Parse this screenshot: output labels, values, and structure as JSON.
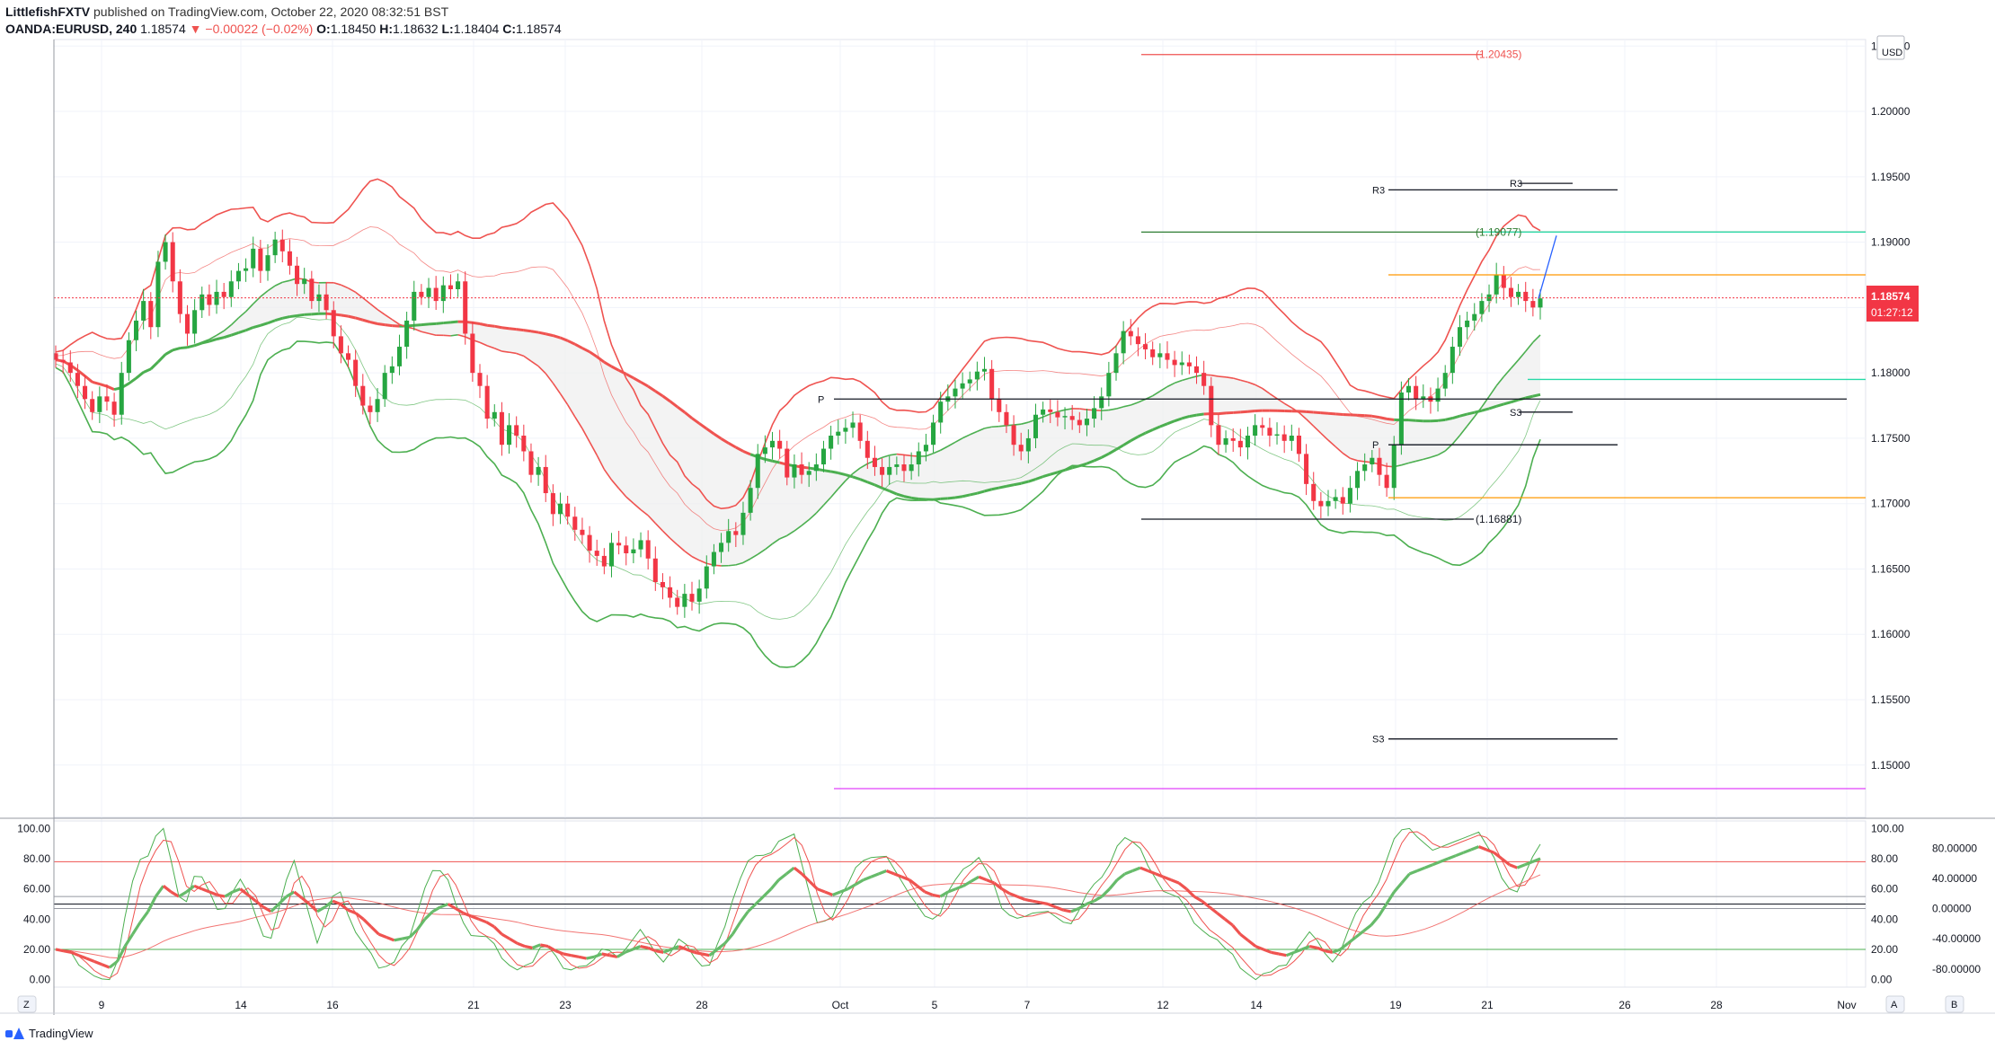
{
  "header": {
    "publisher": "LittlefishFXTV",
    "published_text": "published on TradingView.com, October 22, 2020 08:32:51 BST",
    "symbol": "OANDA:EURUSD, 240",
    "last": "1.18574",
    "change": "▼ −0.00022 (−0.02%)",
    "o_label": "O:",
    "o": "1.18450",
    "h_label": "H:",
    "h": "1.18632",
    "l_label": "L:",
    "l": "1.18404",
    "c_label": "C:",
    "c": "1.18574"
  },
  "price_badge": {
    "price": "1.18574",
    "countdown": "01:27:12"
  },
  "currency": "USD",
  "footer": {
    "brand": "TradingView"
  },
  "scale_buttons": {
    "z": "Z",
    "a": "A",
    "b": "B"
  },
  "colors": {
    "bull": "#26a641",
    "bear": "#f23645",
    "band_red": "#ef5350",
    "band_green": "#4caf50",
    "pivot": "#131722",
    "accent_blue": "#2962ff",
    "orange": "#ff9800",
    "magenta": "#e040fb",
    "teal": "#26d9a6"
  },
  "chart_data": [
    {
      "type": "candlestick",
      "symbol": "OANDA:EURUSD",
      "interval": "240",
      "ylim": [
        1.146,
        1.2055
      ],
      "y_ticks": [
        1.205,
        1.2,
        1.195,
        1.19,
        1.185,
        1.18,
        1.175,
        1.17,
        1.165,
        1.16,
        1.155,
        1.15
      ],
      "y_tick_labels": [
        "1.20500",
        "1.20000",
        "1.19500",
        "1.19000",
        "1.18500",
        "1.18000",
        "1.17500",
        "1.17000",
        "1.16500",
        "1.16000",
        "1.15500",
        "1.15000"
      ],
      "x_tick_labels": [
        "9",
        "14",
        "16",
        "21",
        "23",
        "28",
        "Oct",
        "5",
        "7",
        "12",
        "14",
        "19",
        "21",
        "26",
        "28",
        "Nov"
      ],
      "grid": true,
      "close_series": [
        1.181,
        1.1808,
        1.18,
        1.179,
        1.178,
        1.177,
        1.1782,
        1.1778,
        1.1768,
        1.18,
        1.1825,
        1.184,
        1.1855,
        1.1835,
        1.1885,
        1.19,
        1.187,
        1.1845,
        1.183,
        1.1848,
        1.186,
        1.1852,
        1.1862,
        1.1858,
        1.187,
        1.1878,
        1.188,
        1.1895,
        1.1878,
        1.189,
        1.1902,
        1.1893,
        1.1882,
        1.1868,
        1.1872,
        1.1855,
        1.186,
        1.1848,
        1.1828,
        1.1815,
        1.181,
        1.179,
        1.1775,
        1.177,
        1.178,
        1.18,
        1.1805,
        1.182,
        1.184,
        1.1862,
        1.1858,
        1.1865,
        1.1855,
        1.1867,
        1.1864,
        1.187,
        1.183,
        1.18,
        1.179,
        1.1765,
        1.177,
        1.1745,
        1.176,
        1.1752,
        1.174,
        1.1722,
        1.1728,
        1.1708,
        1.1692,
        1.17,
        1.169,
        1.168,
        1.1676,
        1.1664,
        1.166,
        1.1652,
        1.167,
        1.1668,
        1.1662,
        1.1665,
        1.1672,
        1.1658,
        1.164,
        1.1636,
        1.1628,
        1.1621,
        1.1631,
        1.1625,
        1.1635,
        1.1652,
        1.1663,
        1.167,
        1.1679,
        1.1676,
        1.1693,
        1.1712,
        1.1738,
        1.1743,
        1.1748,
        1.1742,
        1.172,
        1.173,
        1.1722,
        1.1725,
        1.173,
        1.1742,
        1.1752,
        1.1755,
        1.1758,
        1.1762,
        1.1748,
        1.1735,
        1.1728,
        1.1722,
        1.1728,
        1.173,
        1.1725,
        1.173,
        1.174,
        1.1745,
        1.1762,
        1.1778,
        1.1782,
        1.1788,
        1.1792,
        1.1795,
        1.1801,
        1.1803,
        1.178,
        1.177,
        1.176,
        1.1745,
        1.174,
        1.175,
        1.1768,
        1.1772,
        1.177,
        1.1766,
        1.1767,
        1.1764,
        1.176,
        1.1765,
        1.1773,
        1.1782,
        1.18,
        1.1815,
        1.1832,
        1.1828,
        1.1822,
        1.1818,
        1.1812,
        1.1815,
        1.181,
        1.1806,
        1.1808,
        1.1805,
        1.18,
        1.179,
        1.176,
        1.1745,
        1.175,
        1.1748,
        1.1743,
        1.1752,
        1.176,
        1.1758,
        1.1752,
        1.1753,
        1.1748,
        1.1752,
        1.1738,
        1.1715,
        1.1702,
        1.1698,
        1.1702,
        1.1705,
        1.17,
        1.1712,
        1.1725,
        1.173,
        1.1735,
        1.1722,
        1.1712,
        1.1745,
        1.1785,
        1.179,
        1.178,
        1.1782,
        1.1778,
        1.1788,
        1.18,
        1.182,
        1.1835,
        1.184,
        1.1845,
        1.1855,
        1.186,
        1.1875,
        1.1865,
        1.1858,
        1.1862,
        1.1855,
        1.185,
        1.1857
      ],
      "levels": [
        {
          "name": "R3",
          "price": 1.194,
          "color": "#131722"
        },
        {
          "name": "P",
          "price": 1.178,
          "color": "#131722"
        },
        {
          "name": "S3",
          "price": 1.152,
          "color": "#131722"
        },
        {
          "name": "R3",
          "price": 1.1945,
          "color": "#131722"
        },
        {
          "name": "S3",
          "price": 1.177,
          "color": "#131722"
        },
        {
          "name": "P",
          "price": 1.1745,
          "color": "#131722"
        }
      ],
      "annotations": [
        {
          "text": "(1.20435)",
          "price": 1.20435,
          "color": "#ef5350"
        },
        {
          "text": "(1.19077)",
          "price": 1.19077,
          "color": "#2e7d32"
        },
        {
          "text": "(1.16881)",
          "price": 1.16881,
          "color": "#131722"
        }
      ],
      "last_price": 1.18574
    },
    {
      "type": "line",
      "indicator": "oscillator",
      "ylim": [
        -5,
        105
      ],
      "y_ticks_left": [
        100,
        80,
        60,
        40,
        20,
        0
      ],
      "y_tick_labels_left": [
        "100.00",
        "80.00",
        "60.00",
        "40.00",
        "20.00",
        "0.00"
      ],
      "y_ticks_right": [
        100,
        80,
        60,
        40,
        20,
        0
      ],
      "y_tick_labels_right": [
        "100.00",
        "80.00",
        "60.00",
        "40.00",
        "20.00",
        "0.00"
      ],
      "y_tick_labels_far_right": [
        "80.00000",
        "40.00000",
        "0.00000",
        "-40.00000",
        "-80.00000"
      ],
      "levels": [
        78,
        55,
        50,
        47,
        20
      ],
      "main_series": [
        20,
        19,
        18,
        16,
        14,
        12,
        10,
        8,
        12,
        22,
        30,
        38,
        45,
        55,
        62,
        58,
        55,
        58,
        62,
        60,
        58,
        56,
        55,
        58,
        60,
        56,
        52,
        48,
        45,
        50,
        55,
        58,
        54,
        50,
        45,
        48,
        52,
        50,
        46,
        44,
        40,
        35,
        30,
        28,
        26,
        27,
        28,
        33,
        40,
        45,
        48,
        50,
        47,
        44,
        42,
        40,
        38,
        35,
        30,
        27,
        24,
        22,
        21,
        23,
        22,
        19,
        17,
        16,
        15,
        14,
        15,
        17,
        16,
        15,
        18,
        20,
        22,
        21,
        19,
        18,
        20,
        22,
        20,
        18,
        17,
        16,
        20,
        24,
        30,
        38,
        45,
        50,
        55,
        60,
        66,
        70,
        74,
        70,
        65,
        60,
        58,
        56,
        58,
        60,
        63,
        66,
        68,
        70,
        72,
        70,
        68,
        66,
        62,
        58,
        56,
        55,
        58,
        60,
        62,
        65,
        68,
        66,
        64,
        60,
        57,
        55,
        53,
        52,
        51,
        50,
        48,
        46,
        45,
        47,
        50,
        52,
        55,
        60,
        66,
        70,
        72,
        74,
        72,
        70,
        68,
        66,
        64,
        60,
        55,
        52,
        48,
        44,
        40,
        36,
        30,
        26,
        22,
        20,
        18,
        17,
        16,
        18,
        20,
        22,
        21,
        19,
        18,
        20,
        24,
        28,
        32,
        36,
        42,
        50,
        58,
        64,
        70,
        72,
        74,
        76,
        78,
        80,
        82,
        84,
        86,
        88,
        86,
        84,
        80,
        76,
        74,
        76,
        78,
        80
      ]
    }
  ]
}
